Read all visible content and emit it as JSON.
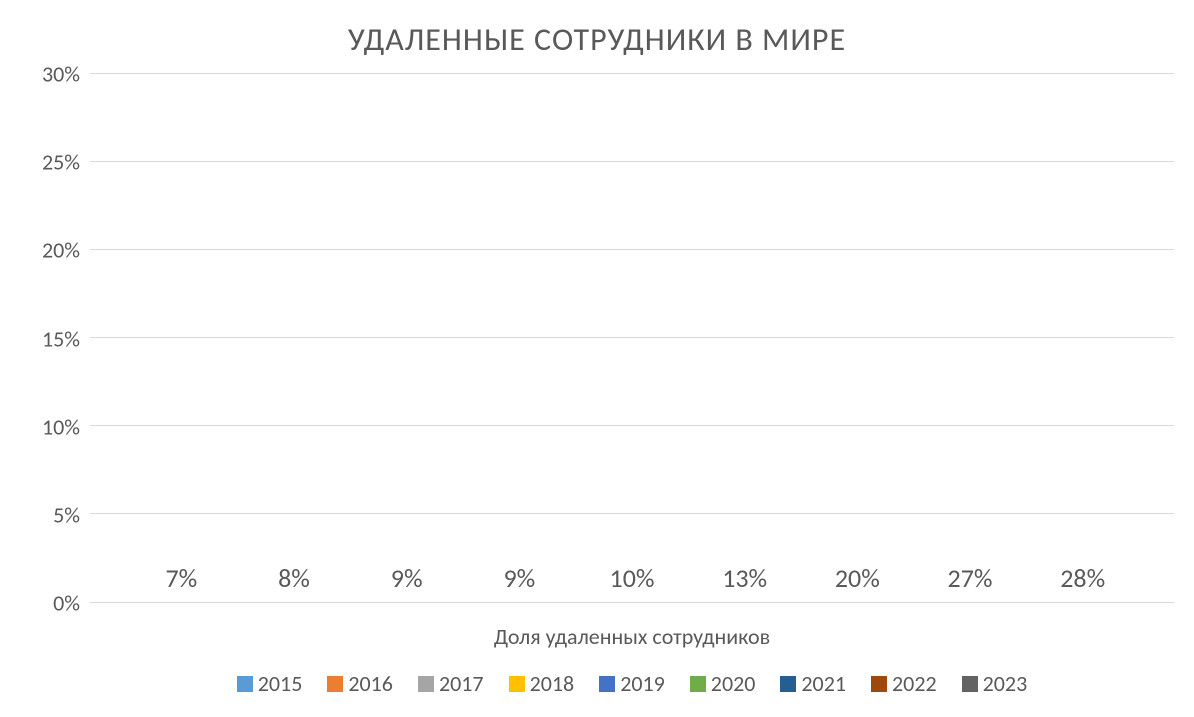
{
  "chart": {
    "type": "bar",
    "title": "УДАЛЕННЫЕ СОТРУДНИКИ В МИРЕ",
    "title_fontsize": 32,
    "title_color": "#595959",
    "xlabel": "Доля удаленных сотрудников",
    "label_fontsize": 22,
    "label_color": "#595959",
    "ylim": [
      0,
      30
    ],
    "ytick_step": 5,
    "ytick_suffix": "%",
    "yticks": [
      "0%",
      "5%",
      "10%",
      "15%",
      "20%",
      "25%",
      "30%"
    ],
    "grid_color": "#d9d9d9",
    "background_color": "#ffffff",
    "bar_width": 0.65,
    "data_label_fontsize": 26,
    "data_label_color": "#595959",
    "series": [
      {
        "year": "2015",
        "value": 7,
        "label": "7%",
        "color": "#5b9bd5"
      },
      {
        "year": "2016",
        "value": 8,
        "label": "8%",
        "color": "#ed7d31"
      },
      {
        "year": "2017",
        "value": 9,
        "label": "9%",
        "color": "#a5a5a5"
      },
      {
        "year": "2018",
        "value": 9,
        "label": "9%",
        "color": "#ffc000"
      },
      {
        "year": "2019",
        "value": 10,
        "label": "10%",
        "color": "#4472c4"
      },
      {
        "year": "2020",
        "value": 13,
        "label": "13%",
        "color": "#70ad47"
      },
      {
        "year": "2021",
        "value": 20,
        "label": "20%",
        "color": "#255e91"
      },
      {
        "year": "2022",
        "value": 27,
        "label": "27%",
        "color": "#9e480e"
      },
      {
        "year": "2023",
        "value": 28,
        "label": "28%",
        "color": "#636363"
      }
    ],
    "legend_fontsize": 22,
    "legend_color": "#595959"
  }
}
